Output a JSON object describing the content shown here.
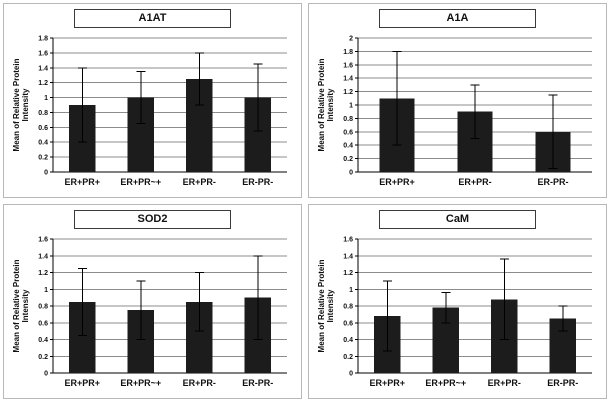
{
  "figure": {
    "background": "#ffffff",
    "bar_color": "#1c1c1c",
    "grid_color": "#8c8c8c",
    "axis_color": "#000000",
    "text_color": "#111111"
  },
  "chart_data": [
    {
      "type": "bar",
      "title": "A1AT",
      "ylabel": "Mean of Relative Protein Intensity",
      "ylabel_lines": [
        "Mean of Relative Protein",
        "Intensity"
      ],
      "ylim": [
        0,
        1.8
      ],
      "ytick_step": 0.2,
      "grid": true,
      "legend": false,
      "categories": [
        "ER+PR+",
        "ER+PR~+",
        "ER+PR-",
        "ER-PR-"
      ],
      "values": [
        0.9,
        1.0,
        1.25,
        1.0
      ],
      "errors": [
        0.5,
        0.35,
        0.35,
        0.45
      ]
    },
    {
      "type": "bar",
      "title": "A1A",
      "ylabel": "Mean of Relative Protein Intensity",
      "ylabel_lines": [
        "Mean of Relative Protein",
        "Intensity"
      ],
      "ylim": [
        0,
        2
      ],
      "ytick_step": 0.2,
      "grid": true,
      "legend": false,
      "categories": [
        "ER+PR+",
        "ER+PR-",
        "ER-PR-"
      ],
      "values": [
        1.1,
        0.9,
        0.6
      ],
      "errors": [
        0.7,
        0.4,
        0.55
      ]
    },
    {
      "type": "bar",
      "title": "SOD2",
      "ylabel": "Mean of Relative Protein Intensity",
      "ylabel_lines": [
        "Mean of Relative Protein",
        "Intensity"
      ],
      "ylim": [
        0,
        1.6
      ],
      "ytick_step": 0.2,
      "grid": true,
      "legend": false,
      "categories": [
        "ER+PR+",
        "ER+PR~+",
        "ER+PR-",
        "ER-PR-"
      ],
      "values": [
        0.85,
        0.75,
        0.85,
        0.9
      ],
      "errors": [
        0.4,
        0.35,
        0.35,
        0.5
      ]
    },
    {
      "type": "bar",
      "title": "CaM",
      "ylabel": "Mean of Relative Protein Intensity",
      "ylabel_lines": [
        "Mean of Relative Protein",
        "Intensity"
      ],
      "ylim": [
        0,
        1.6
      ],
      "ytick_step": 0.2,
      "grid": true,
      "legend": false,
      "categories": [
        "ER+PR+",
        "ER+PR~+",
        "ER+PR-",
        "ER-PR-"
      ],
      "values": [
        0.68,
        0.78,
        0.88,
        0.65
      ],
      "errors": [
        0.42,
        0.18,
        0.48,
        0.15
      ]
    }
  ]
}
